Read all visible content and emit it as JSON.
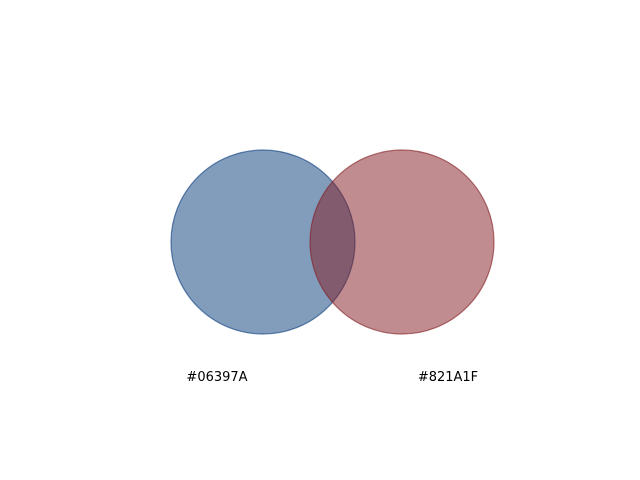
{
  "diagram": {
    "type": "venn",
    "sets": [
      {
        "id": "left",
        "label": "#06397A",
        "color": "#06397A",
        "fill_opacity": 0.5
      },
      {
        "id": "right",
        "label": "#821A1F",
        "color": "#821A1F",
        "fill_opacity": 0.5
      }
    ]
  }
}
